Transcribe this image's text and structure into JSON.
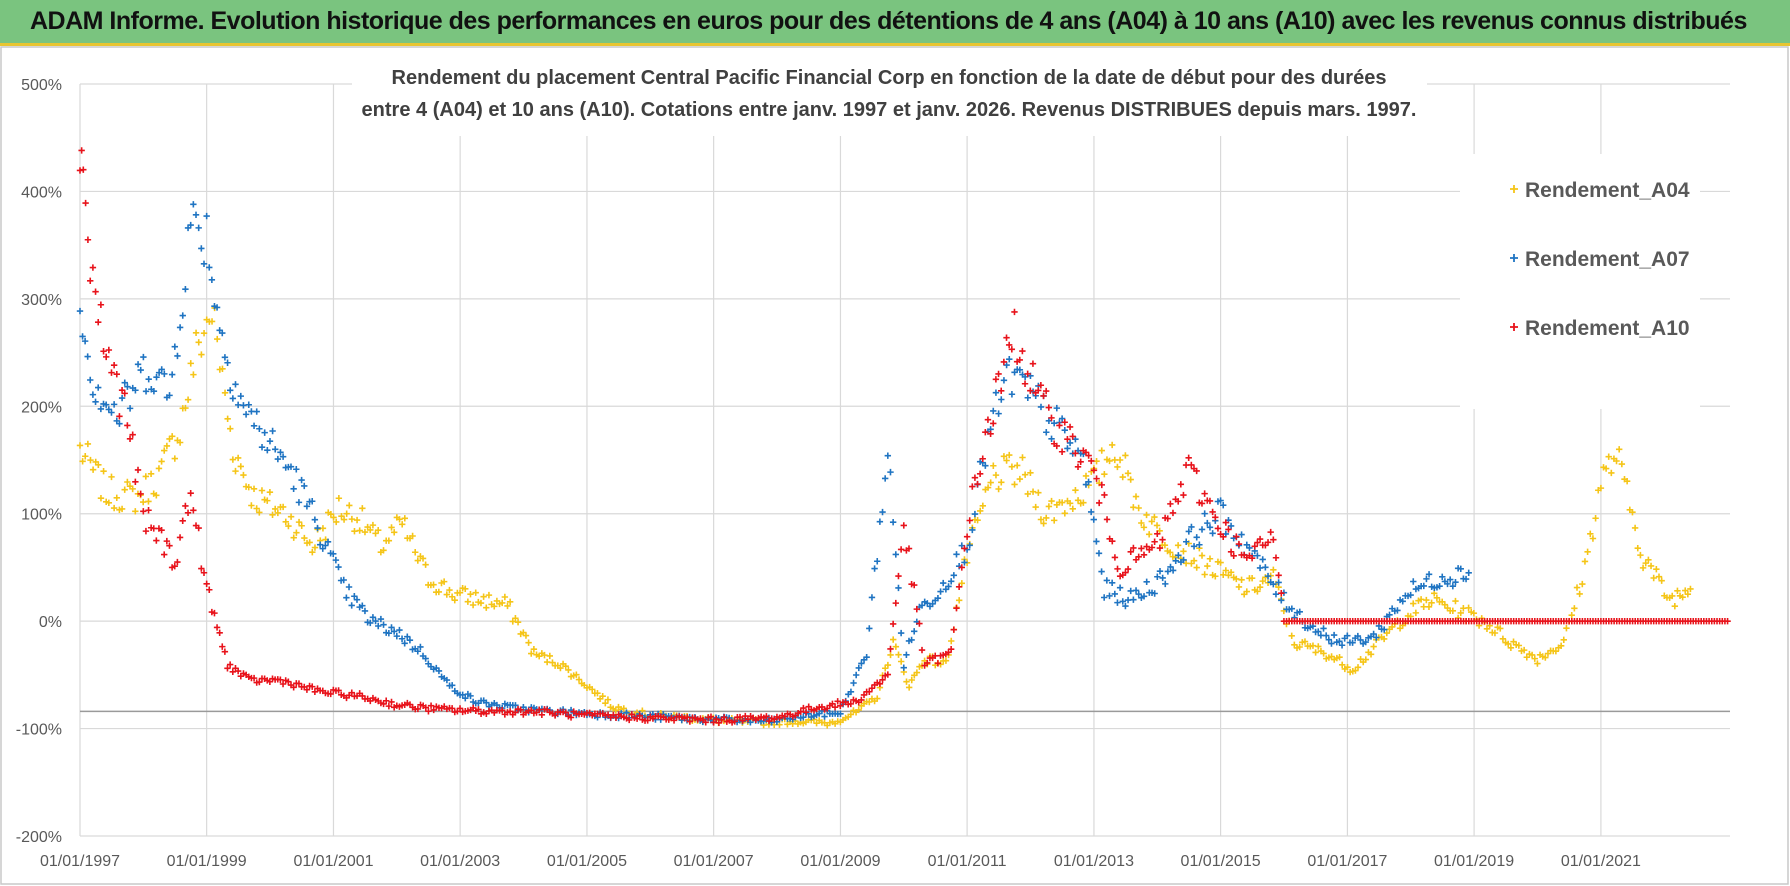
{
  "header": {
    "title": "ADAM Informe. Evolution historique des performances en euros pour des détentions de 4 ans (A04) à 10 ans (A10) avec les revenus connus distribués"
  },
  "colors": {
    "header_bg": "#7ac47f",
    "header_border": "#e8c531",
    "A04": "#f5c518",
    "A07": "#1f74c2",
    "A10": "#e8131b",
    "grid": "#d9d9d9"
  },
  "chart_data": {
    "type": "scatter",
    "title_lines": [
      "Rendement du placement Central Pacific Financial Corp en fonction de la date de début pour des durées",
      "entre 4 (A04) et 10 ans (A10).  Cotations entre janv. 1997 et janv. 2026. Revenus DISTRIBUES depuis mars. 1997."
    ],
    "y_ticks": [
      "500%",
      "400%",
      "300%",
      "200%",
      "100%",
      "0%",
      "-100%",
      "-200%"
    ],
    "ylim": [
      -200,
      500
    ],
    "x_ticks": [
      "01/01/1997",
      "01/01/1999",
      "01/01/2001",
      "01/01/2003",
      "01/01/2005",
      "01/01/2007",
      "01/01/2009",
      "01/01/2011",
      "01/01/2013",
      "01/01/2015",
      "01/01/2017",
      "01/01/2019",
      "01/01/2021"
    ],
    "xlim": [
      "1997-01-01",
      "2023-01-15"
    ],
    "reference_line_y": -84,
    "legend_position": "top-right",
    "series": [
      {
        "name": "Rendement_A04",
        "x": [
          "1997-01-01",
          "1997-06-01",
          "1997-12-01",
          "1998-04-01",
          "1998-08-01",
          "1998-11-01",
          "1999-02-01",
          "1999-06-01",
          "1999-10-01",
          "2000-04-01",
          "2000-09-01",
          "2001-02-01",
          "2001-06-01",
          "2001-10-01",
          "2002-02-01",
          "2002-07-01",
          "2002-12-01",
          "2003-05-01",
          "2003-10-01",
          "2004-03-01",
          "2004-08-01",
          "2005-01-01",
          "2005-06-01",
          "2006-01-01",
          "2006-08-01",
          "2007-03-01",
          "2007-10-01",
          "2008-05-01",
          "2008-11-01",
          "2009-04-01",
          "2009-08-01",
          "2009-11-01",
          "2010-02-01",
          "2010-05-01",
          "2010-09-01",
          "2011-01-01",
          "2011-06-01",
          "2011-11-01",
          "2012-04-01",
          "2012-09-01",
          "2013-01-01",
          "2013-05-01",
          "2013-10-01",
          "2014-03-01",
          "2014-08-01",
          "2015-01-01",
          "2015-06-01",
          "2015-11-01",
          "2016-03-01",
          "2016-09-01",
          "2017-02-01",
          "2017-07-01",
          "2017-12-01",
          "2018-05-01",
          "2018-10-01",
          "2019-03-01",
          "2019-08-01",
          "2020-01-01",
          "2020-06-01",
          "2020-10-01",
          "2021-01-01",
          "2021-04-01",
          "2021-09-01",
          "2022-02-01",
          "2022-06-01"
        ],
        "y": [
          160,
          120,
          115,
          135,
          180,
          250,
          290,
          160,
          115,
          100,
          70,
          105,
          95,
          70,
          90,
          40,
          25,
          20,
          15,
          -30,
          -40,
          -60,
          -80,
          -88,
          -90,
          -93,
          -94,
          -93,
          -95,
          -85,
          -70,
          -20,
          -60,
          -35,
          -40,
          60,
          135,
          140,
          100,
          115,
          130,
          165,
          100,
          75,
          60,
          45,
          30,
          40,
          -20,
          -30,
          -45,
          -20,
          5,
          20,
          10,
          0,
          -20,
          -35,
          -20,
          50,
          130,
          155,
          60,
          20,
          30
        ]
      },
      {
        "name": "Rendement_A07",
        "x": [
          "1997-01-01",
          "1997-03-01",
          "1997-08-01",
          "1998-02-01",
          "1998-06-01",
          "1998-10-01",
          "1999-01-01",
          "1999-04-01",
          "1999-08-01",
          "2000-01-01",
          "2000-05-01",
          "2000-10-01",
          "2001-03-01",
          "2001-08-01",
          "2002-01-01",
          "2002-06-01",
          "2002-11-01",
          "2003-04-01",
          "2003-10-01",
          "2004-06-01",
          "2005-01-01",
          "2005-09-01",
          "2006-06-01",
          "2007-03-01",
          "2007-12-01",
          "2008-06-01",
          "2009-01-01",
          "2009-06-01",
          "2009-10-01",
          "2010-01-01",
          "2010-04-01",
          "2010-08-01",
          "2011-01-01",
          "2011-05-01",
          "2011-09-01",
          "2012-01-01",
          "2012-06-01",
          "2012-11-01",
          "2013-03-01",
          "2013-08-01",
          "2014-02-01",
          "2014-08-01",
          "2015-01-01",
          "2015-06-01",
          "2016-01-01",
          "2016-06-01",
          "2016-12-01",
          "2017-06-01",
          "2017-12-01",
          "2018-06-01",
          "2018-12-01"
        ],
        "y": [
          310,
          230,
          190,
          240,
          210,
          370,
          360,
          260,
          200,
          165,
          140,
          90,
          30,
          0,
          -10,
          -30,
          -60,
          -75,
          -80,
          -84,
          -86,
          -88,
          -90,
          -92,
          -93,
          -88,
          -85,
          -30,
          160,
          -40,
          10,
          30,
          70,
          170,
          230,
          210,
          180,
          150,
          30,
          20,
          40,
          80,
          100,
          70,
          20,
          -5,
          -20,
          -15,
          25,
          40,
          45
        ]
      },
      {
        "name": "Rendement_A10",
        "x": [
          "1997-01-01",
          "1997-01-20",
          "1997-03-01",
          "1997-06-01",
          "1997-10-01",
          "1998-01-01",
          "1998-04-01",
          "1998-07-01",
          "1998-10-01",
          "1999-01-01",
          "1999-05-01",
          "1999-09-01",
          "2000-03-01",
          "2000-10-01",
          "2001-06-01",
          "2002-01-01",
          "2002-09-01",
          "2003-06-01",
          "2004-03-01",
          "2005-01-01",
          "2006-01-01",
          "2007-01-01",
          "2008-01-01",
          "2008-09-01",
          "2009-04-01",
          "2009-10-01",
          "2010-01-01",
          "2010-05-01",
          "2010-10-01",
          "2011-01-01",
          "2011-05-01",
          "2011-10-01",
          "2012-03-01",
          "2012-08-01",
          "2013-01-01",
          "2013-06-01",
          "2014-01-01",
          "2014-07-01",
          "2015-01-01",
          "2015-06-01",
          "2015-11-01",
          "2016-01-01",
          "2016-06-01",
          "2017-01-01",
          "2018-01-01",
          "2019-01-01",
          "2020-01-01",
          "2021-01-01",
          "2022-01-01",
          "2023-01-01"
        ],
        "y": [
          450,
          420,
          330,
          250,
          190,
          95,
          80,
          55,
          120,
          30,
          -40,
          -55,
          -55,
          -65,
          -70,
          -78,
          -82,
          -84,
          -84,
          -88,
          -90,
          -92,
          -90,
          -80,
          -75,
          -50,
          90,
          -40,
          -30,
          90,
          180,
          270,
          200,
          170,
          140,
          50,
          70,
          140,
          90,
          55,
          80,
          0,
          0,
          0,
          0,
          0,
          0,
          0,
          0,
          0
        ]
      }
    ]
  }
}
